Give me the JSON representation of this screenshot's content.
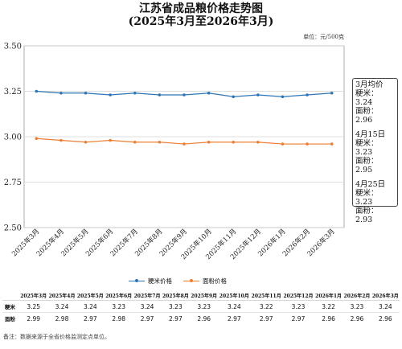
{
  "title_line1": "江苏省成品粮价格走势图",
  "title_line2": "(2025年3月至2026年3月)",
  "unit": "单位：元/500克",
  "side_panel": [
    {
      "label": "3月均价",
      "rice": "粳米：3.24",
      "flour": "面粉：2.96"
    },
    {
      "label": "4月15日",
      "rice": "粳米：3.23",
      "flour": "面粉：2.95"
    },
    {
      "label": "4月25日",
      "rice": "粳米：3.23",
      "flour": "面粉：2.93"
    }
  ],
  "note": "备注：数据来源于全省价格监测定点单位。",
  "table": {
    "row_labels": [
      "粳米",
      "面粉"
    ]
  },
  "chart_data": {
    "type": "line",
    "categories": [
      "2025年3月",
      "2025年4月",
      "2025年5月",
      "2025年6月",
      "2025年7月",
      "2025年8月",
      "2025年9月",
      "2025年10月",
      "2025年11月",
      "2025年12月",
      "2026年1月",
      "2026年2月",
      "2026年3月"
    ],
    "series": [
      {
        "name": "粳米价格",
        "color": "#2e75b6",
        "values": [
          3.25,
          3.24,
          3.24,
          3.23,
          3.24,
          3.23,
          3.23,
          3.24,
          3.22,
          3.23,
          3.22,
          3.23,
          3.24
        ]
      },
      {
        "name": "面粉价格",
        "color": "#ed7d31",
        "values": [
          2.99,
          2.98,
          2.97,
          2.98,
          2.97,
          2.97,
          2.96,
          2.97,
          2.97,
          2.97,
          2.96,
          2.96,
          2.96
        ]
      }
    ],
    "ylim": [
      2.5,
      3.5
    ],
    "yticks": [
      "2.50",
      "2.75",
      "3.00",
      "3.25",
      "3.50"
    ],
    "grid": true,
    "legend": "bottom"
  }
}
